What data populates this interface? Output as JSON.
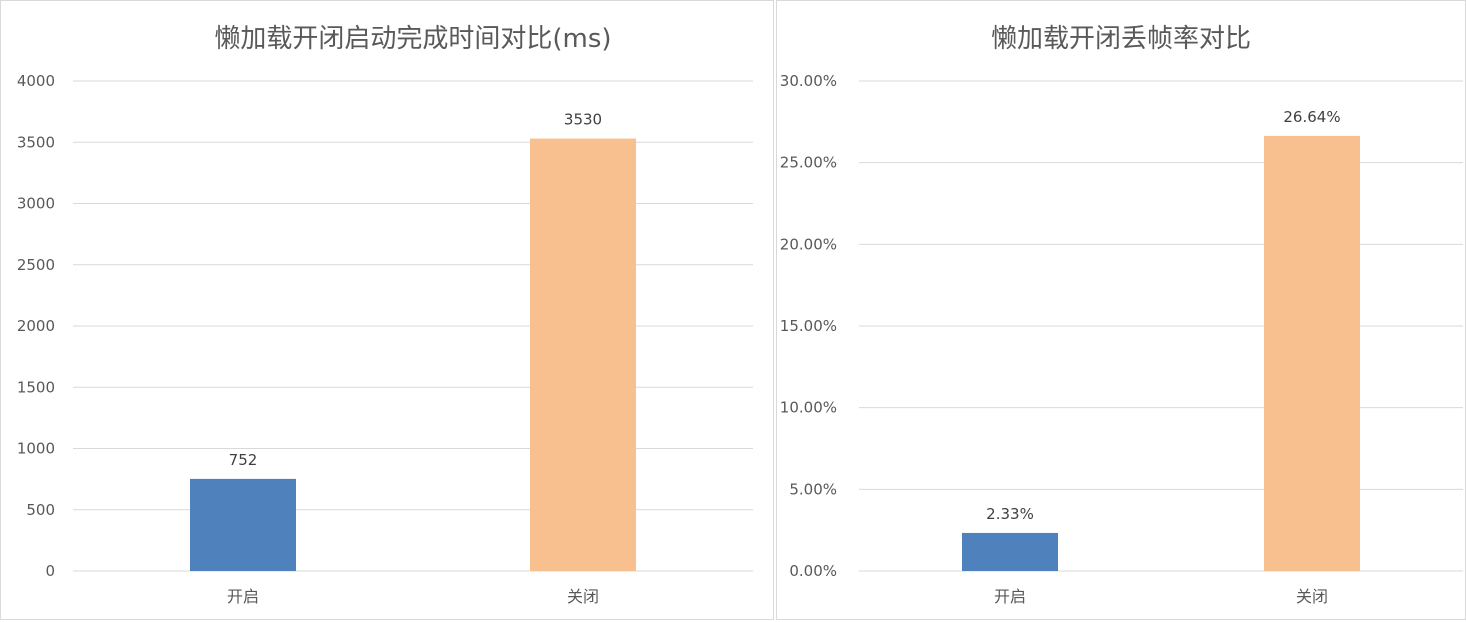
{
  "chart_data": [
    {
      "type": "bar",
      "title": "懒加载开闭启动完成时间对比(ms)",
      "categories": [
        "开启",
        "关闭"
      ],
      "values": [
        752,
        3530
      ],
      "data_labels": [
        "752",
        "3530"
      ],
      "ylim": [
        0,
        4000
      ],
      "yticks": [
        "0",
        "500",
        "1000",
        "1500",
        "2000",
        "2500",
        "3000",
        "3500",
        "4000"
      ],
      "colors": [
        "#4f81bd",
        "#f9c08f"
      ],
      "grid": true,
      "legend": "none"
    },
    {
      "type": "bar",
      "title": "懒加载开闭丢帧率对比",
      "categories": [
        "开启",
        "关闭"
      ],
      "values": [
        2.33,
        26.64
      ],
      "data_labels": [
        "2.33%",
        "26.64%"
      ],
      "ylim": [
        0,
        30
      ],
      "yticks": [
        "0.00%",
        "5.00%",
        "10.00%",
        "15.00%",
        "20.00%",
        "25.00%",
        "30.00%"
      ],
      "colors": [
        "#4f81bd",
        "#f9c08f"
      ],
      "grid": true,
      "legend": "none"
    }
  ]
}
